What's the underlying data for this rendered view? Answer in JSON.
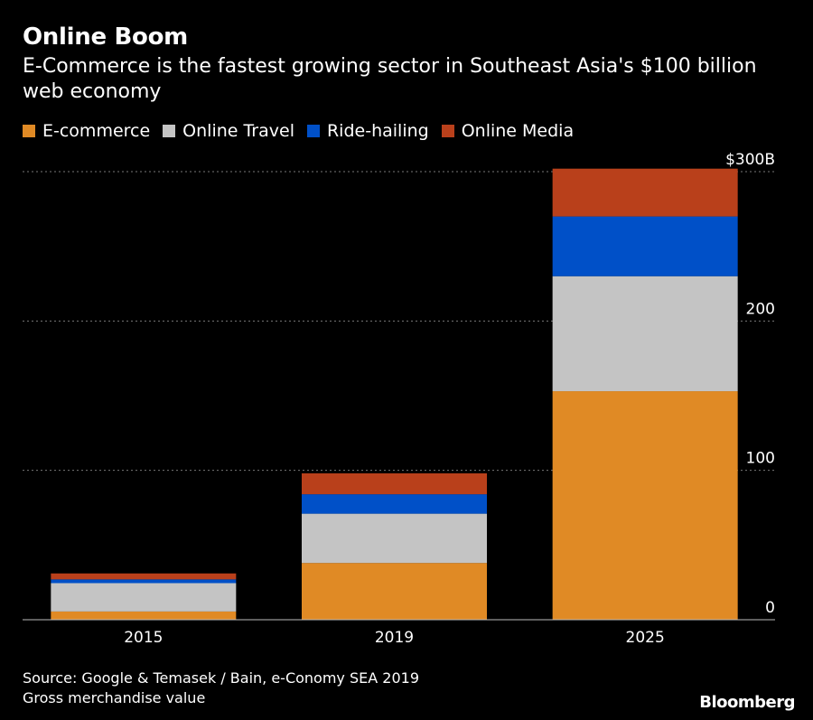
{
  "header": {
    "title": "Online Boom",
    "subtitle": "E-Commerce is the fastest growing sector in Southeast Asia's $100 billion web economy"
  },
  "footer": {
    "source": "Source: Google & Temasek / Bain, e-Conomy SEA 2019",
    "note": "Gross merchandise value",
    "brand": "Bloomberg"
  },
  "chart_data": {
    "type": "bar",
    "stacked": true,
    "categories": [
      "2015",
      "2019",
      "2025"
    ],
    "series": [
      {
        "name": "E-commerce",
        "color": "#e08a25",
        "values": [
          5.5,
          38,
          153
        ]
      },
      {
        "name": "Online Travel",
        "color": "#c4c4c4",
        "values": [
          19,
          33,
          77
        ]
      },
      {
        "name": "Ride-hailing",
        "color": "#0050c8",
        "values": [
          2.5,
          13,
          40
        ]
      },
      {
        "name": "Online Media",
        "color": "#b9401b",
        "values": [
          4,
          14,
          32
        ]
      }
    ],
    "yaxis": {
      "ticks": [
        0,
        100,
        200,
        300
      ],
      "tick_labels": [
        "0",
        "100",
        "200",
        "$300B"
      ],
      "range": [
        0,
        300
      ],
      "side": "right"
    },
    "grid": true,
    "legend": "top-left"
  }
}
